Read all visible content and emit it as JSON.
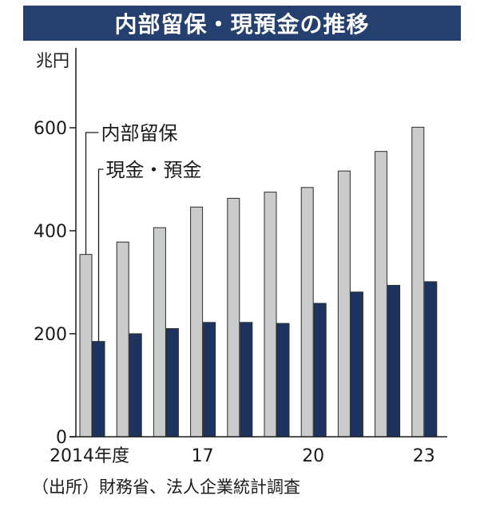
{
  "title": "内部留保・現預金の推移",
  "source": "（出所）財務省、法人企業統計調査",
  "colors": {
    "title_bg": "#253f6e",
    "title_text": "#ffffff",
    "retained": "#c9cbcd",
    "cash": "#1d3461",
    "bar_stroke": "#2b2b2b"
  },
  "chart_data": {
    "type": "bar",
    "title": "内部留保・現預金の推移",
    "ylabel": "兆円",
    "xlabel": "",
    "ylim": [
      0,
      625
    ],
    "yticks": [
      0,
      200,
      400,
      600
    ],
    "grid": false,
    "categories": [
      "2014",
      "2015",
      "2016",
      "2017",
      "2018",
      "2019",
      "2020",
      "2021",
      "2022",
      "2023"
    ],
    "tick_labels": [
      "2014年度",
      "",
      "",
      "17",
      "",
      "",
      "20",
      "",
      "",
      "23"
    ],
    "series": [
      {
        "name": "内部留保",
        "values": [
          354,
          378,
          406,
          446,
          463,
          475,
          484,
          516,
          554,
          601
        ]
      },
      {
        "name": "現金・預金",
        "values": [
          185,
          200,
          210,
          222,
          222,
          220,
          259,
          281,
          294,
          301
        ]
      }
    ],
    "legend_placement": "top-left"
  }
}
